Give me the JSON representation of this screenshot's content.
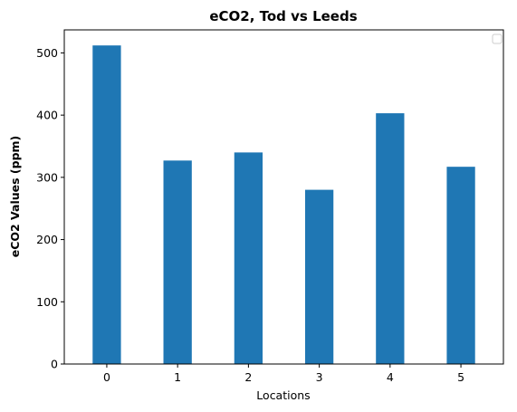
{
  "chart_data": {
    "type": "bar",
    "title": "eCO2, Tod vs Leeds",
    "xlabel": "Locations",
    "ylabel": "eCO2 Values (ppm)",
    "categories": [
      "0",
      "1",
      "2",
      "3",
      "4",
      "5"
    ],
    "values": [
      512,
      327,
      340,
      280,
      403,
      317
    ],
    "ylim": [
      0,
      537
    ],
    "xlim": [
      -0.6,
      5.6
    ],
    "yticks": [
      0,
      100,
      200,
      300,
      400,
      500
    ],
    "bar_width": 0.4,
    "bar_color": "#1f77b4",
    "grid": false,
    "legend": {
      "placement": "top-right",
      "entries": []
    }
  }
}
